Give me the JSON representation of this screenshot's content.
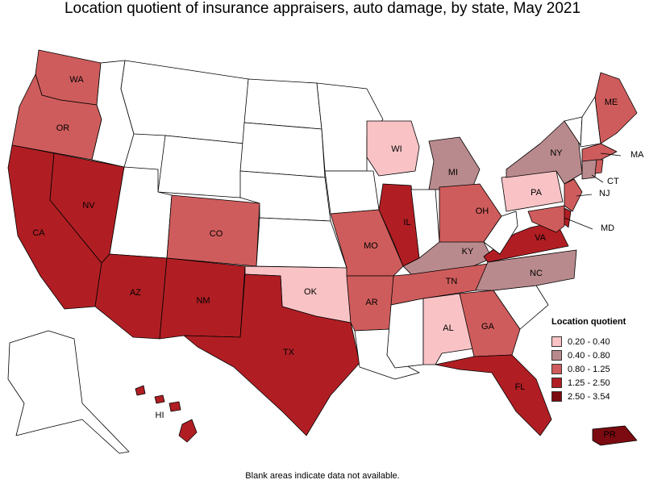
{
  "title": "Location quotient of insurance appraisers, auto damage, by state, May 2021",
  "footnote": "Blank areas indicate data not available.",
  "colors": {
    "blank": "#ffffff",
    "q1": "#f9c3c6",
    "q2": "#b98a8d",
    "q3": "#cf5c5c",
    "q4": "#b01e23",
    "q5": "#7b0b10"
  },
  "legend": {
    "title": "Location quotient",
    "items": [
      {
        "label": "0.20 - 0.40",
        "color": "#f9c3c6"
      },
      {
        "label": "0.40 - 0.80",
        "color": "#b98a8d"
      },
      {
        "label": "0.80 - 1.25",
        "color": "#cf5c5c"
      },
      {
        "label": "1.25 - 2.50",
        "color": "#b01e23"
      },
      {
        "label": "2.50 - 3.54",
        "color": "#7b0b10"
      }
    ]
  },
  "state_labels": {
    "WA": "WA",
    "OR": "OR",
    "CA": "CA",
    "NV": "NV",
    "AZ": "AZ",
    "CO": "CO",
    "NM": "NM",
    "TX": "TX",
    "OK": "OK",
    "MO": "MO",
    "AR": "AR",
    "IL": "IL",
    "WI": "WI",
    "MI": "MI",
    "OH": "OH",
    "KY": "KY",
    "TN": "TN",
    "AL": "AL",
    "GA": "GA",
    "FL": "FL",
    "NC": "NC",
    "VA": "VA",
    "PA": "PA",
    "NY": "NY",
    "ME": "ME",
    "MA": "MA",
    "CT": "CT",
    "NJ": "NJ",
    "MD": "MD",
    "HI": "HI",
    "PR": "PR"
  },
  "state_classes": {
    "WA": "0.80 - 1.25",
    "OR": "0.80 - 1.25",
    "CA": "1.25 - 2.50",
    "NV": "1.25 - 2.50",
    "AZ": "1.25 - 2.50",
    "CO": "0.80 - 1.25",
    "NM": "1.25 - 2.50",
    "TX": "1.25 - 2.50",
    "OK": "0.20 - 0.40",
    "MO": "0.80 - 1.25",
    "AR": "0.80 - 1.25",
    "IL": "1.25 - 2.50",
    "WI": "0.20 - 0.40",
    "MI": "0.40 - 0.80",
    "OH": "0.80 - 1.25",
    "KY": "0.40 - 0.80",
    "TN": "0.80 - 1.25",
    "AL": "0.20 - 0.40",
    "GA": "0.80 - 1.25",
    "FL": "1.25 - 2.50",
    "NC": "0.40 - 0.80",
    "VA": "1.25 - 2.50",
    "PA": "0.20 - 0.40",
    "NY": "0.40 - 0.80",
    "ME": "0.80 - 1.25",
    "MA": "0.80 - 1.25",
    "CT": "0.40 - 0.80",
    "NJ": "0.80 - 1.25",
    "MD": "0.80 - 1.25",
    "HI": "1.25 - 2.50",
    "PR": "2.50 - 3.54",
    "DE": "1.25 - 2.50",
    "RI": "0.80 - 1.25",
    "WV": "",
    "NH": "",
    "VT": "",
    "ID": "",
    "MT": "",
    "WY": "",
    "UT": "",
    "ND": "",
    "SD": "",
    "NE": "",
    "KS": "",
    "MN": "",
    "IA": "",
    "IN": "",
    "MS": "",
    "LA": "",
    "SC": "",
    "AK": ""
  }
}
